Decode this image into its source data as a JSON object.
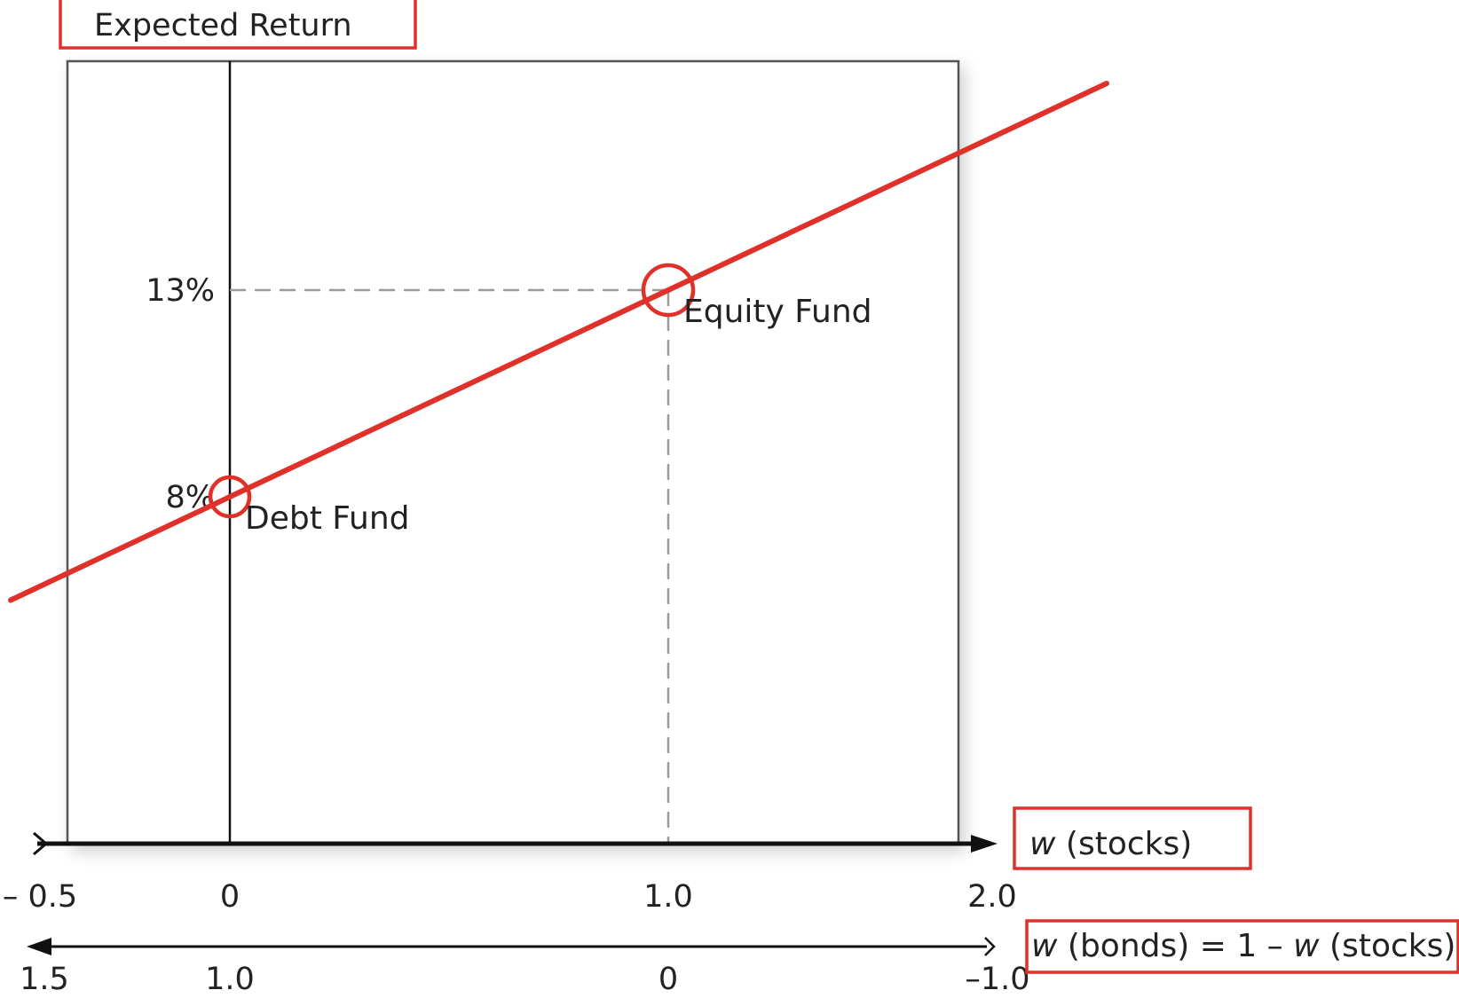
{
  "chart_data": {
    "type": "line",
    "title": "",
    "ylabel": "Expected Return",
    "xlabel_primary": {
      "var": "w",
      "rest": " (stocks)"
    },
    "xlabel_secondary": {
      "var1": "w",
      "mid": " (bonds) = 1 – ",
      "var2": "w",
      "end": " (stocks)"
    },
    "xlim": [
      -0.5,
      2.0
    ],
    "x_ticks_primary": [
      "– 0.5",
      "0",
      "1.0",
      "2.0"
    ],
    "x_ticks_secondary": [
      "1.5",
      "1.0",
      "0",
      "–1.0"
    ],
    "y_ticks": [
      "8%",
      "13%"
    ],
    "series": [
      {
        "x": [
          -0.5,
          0,
          1.0,
          2.0
        ],
        "y": [
          5.5,
          8,
          13,
          18
        ]
      }
    ],
    "points": [
      {
        "label": "Debt Fund",
        "x": 0,
        "y": 8
      },
      {
        "label": "Equity Fund",
        "x": 1.0,
        "y": 13
      }
    ],
    "grid": false,
    "colors": {
      "line": "#e0302a",
      "annotation_box": "#e0302a",
      "axis": "#111111",
      "guide": "#9a9a9a"
    }
  }
}
